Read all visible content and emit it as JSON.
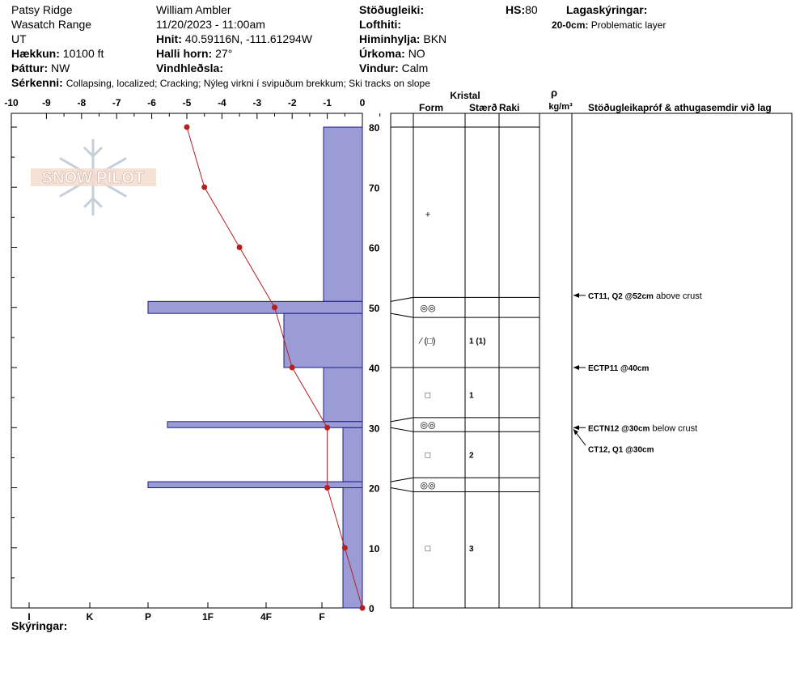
{
  "header": {
    "location": "Patsy Ridge",
    "range": "Wasatch Range",
    "state": "UT",
    "elevation_label": "Hækkun:",
    "elevation": "10100 ft",
    "aspect_label": "Þáttur:",
    "aspect": "NW",
    "observer": "William Ambler",
    "datetime": "11/20/2023 - 11:00am",
    "coords_label": "Hnit:",
    "coords": "40.59116N, -111.61294W",
    "slope_label": "Halli horn:",
    "slope": "27°",
    "wind_loading_label": "Vindhleðsla:",
    "stability_label": "Stöðugleiki:",
    "air_temp_label": "Lofthiti:",
    "sky_label": "Himinhylja:",
    "sky": "BKN",
    "precip_label": "Úrkoma:",
    "precip": "NO",
    "wind_label": "Vindur:",
    "wind": "Calm",
    "hs_label": "HS:",
    "hs": "80",
    "layer_notes_label": "Lagaskýringar:",
    "layer_note_range": "20-0cm:",
    "layer_note_text": "Problematic layer",
    "features_label": "Sérkenni:",
    "features": "Collapsing, localized;  Cracking;  Nýleg virkni í svipuðum brekkum;  Ski tracks on slope"
  },
  "logo_text": "SNOW PILOT",
  "footer": {
    "notes_label": "Skýringar:"
  },
  "columns": {
    "crystal": "Kristal",
    "form": "Form",
    "size": "Stærð",
    "moisture": "Raki",
    "rho": "ρ",
    "density_unit": "kg/m³",
    "tests": "Stöðugleikapróf & athugasemdir við lag"
  },
  "colors": {
    "hardness_fill": "#9b9bd6",
    "hardness_stroke": "#1c1c8c",
    "temp_line": "#b52020"
  },
  "chart_data": {
    "type": "line",
    "x_axis_top": {
      "label": "",
      "range": [
        -10,
        0
      ],
      "ticks": [
        -10,
        -9,
        -8,
        -7,
        -6,
        -5,
        -4,
        -3,
        -2,
        -1,
        0
      ]
    },
    "x_axis_bottom": {
      "hardness_ticks": [
        "I",
        "K",
        "P",
        "1F",
        "4F",
        "F"
      ]
    },
    "y_axis": {
      "range": [
        0,
        80
      ],
      "ticks": [
        0,
        10,
        20,
        30,
        40,
        50,
        60,
        70,
        80
      ]
    },
    "temperature_profile": {
      "depth": [
        80,
        70,
        60,
        50,
        40,
        30,
        20,
        10,
        0
      ],
      "temp": [
        -5.0,
        -4.5,
        -3.5,
        -2.5,
        -2.0,
        -1.0,
        -1.0,
        -0.5,
        0.0
      ]
    },
    "hardness_layers": [
      {
        "top": 80,
        "bottom": 51,
        "hardness": "F"
      },
      {
        "top": 51,
        "bottom": 49,
        "hardness": "P"
      },
      {
        "top": 49,
        "bottom": 40,
        "hardness": "F+"
      },
      {
        "top": 40,
        "bottom": 31,
        "hardness": "F"
      },
      {
        "top": 31,
        "bottom": 30,
        "hardness": "P-"
      },
      {
        "top": 30,
        "bottom": 21,
        "hardness": "F-"
      },
      {
        "top": 21,
        "bottom": 20,
        "hardness": "P"
      },
      {
        "top": 20,
        "bottom": 0,
        "hardness": "F-"
      }
    ],
    "layer_boundaries": [
      80,
      51,
      49,
      40,
      31,
      30,
      21,
      20,
      0
    ],
    "grain_layers": [
      {
        "depth": 65.5,
        "form": "+",
        "size": ""
      },
      {
        "depth": 50,
        "form": "◎◎",
        "size": ""
      },
      {
        "depth": 44.5,
        "form": "⁄ (□)",
        "size": "1 (1)"
      },
      {
        "depth": 35.5,
        "form": "□",
        "size": "1"
      },
      {
        "depth": 30.5,
        "form": "◎◎",
        "size": ""
      },
      {
        "depth": 25.5,
        "form": "□",
        "size": "2"
      },
      {
        "depth": 20.5,
        "form": "◎◎",
        "size": ""
      },
      {
        "depth": 10,
        "form": "□",
        "size": "3"
      }
    ],
    "tests": [
      {
        "depth": 52,
        "code": "CT11, Q2 @52cm",
        "comment": "above crust"
      },
      {
        "depth": 40,
        "code": "ECTP11 @40cm",
        "comment": ""
      },
      {
        "depth": 30,
        "code": "ECTN12 @30cm",
        "comment": "below crust"
      },
      {
        "depth": 30,
        "code": "CT12, Q1 @30cm",
        "comment": ""
      }
    ]
  }
}
